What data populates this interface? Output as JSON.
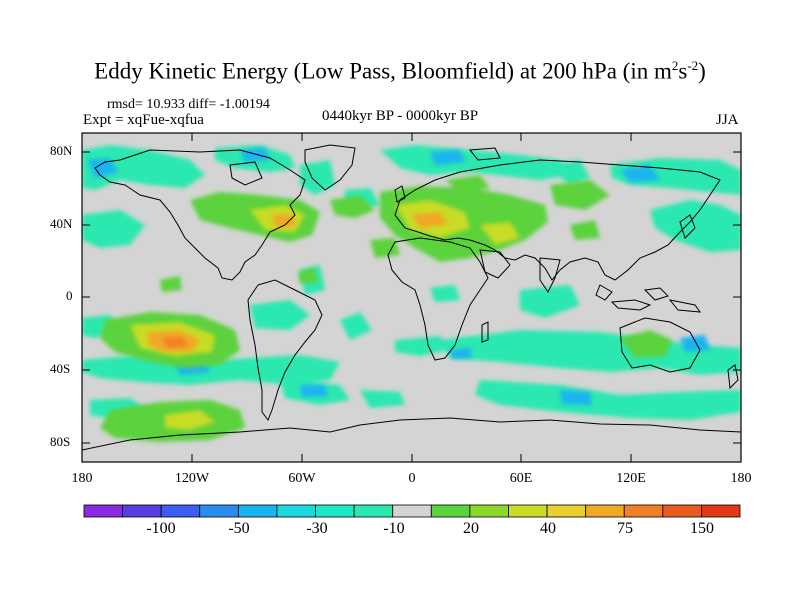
{
  "title": "Eddy Kinetic Energy (Low Pass, Bloomfield) at 200 hPa (in m",
  "title_sup1": "2",
  "title_mid": "s",
  "title_sup2": "-2",
  "title_end": ")",
  "stats": "rmsd= 10.933 diff= -1.00194",
  "experiment": "Expt = xqFue-xqfua",
  "period": "0440kyr BP - 0000kyr BP",
  "season": "JJA",
  "y_axis": {
    "ticks": [
      "80N",
      "40N",
      "0",
      "40S",
      "80S"
    ]
  },
  "x_axis": {
    "ticks": [
      "180",
      "120W",
      "60W",
      "0",
      "60E",
      "120E",
      "180"
    ]
  },
  "colorbar": {
    "labels": [
      "-100",
      "-50",
      "-30",
      "-10",
      "20",
      "40",
      "75",
      "150"
    ],
    "colors": [
      "#8a2be2",
      "#5a3ce0",
      "#3c5ef0",
      "#2a8ef0",
      "#1ab4f0",
      "#1cd8e0",
      "#1ee8c8",
      "#2ae8b0",
      "#d4d4d4",
      "#5cd23c",
      "#8cd82a",
      "#c8dc28",
      "#e8d030",
      "#f0a828",
      "#f08028",
      "#e85a20",
      "#e03818"
    ]
  },
  "colors": {
    "land_sea_bg": "#d4d4d4",
    "positive_weak": "#5cd23c",
    "positive_mid": "#c8dc28",
    "positive_strong": "#f0a828",
    "negative_weak": "#2ae8b0",
    "negative_mid": "#1ab4f0"
  }
}
